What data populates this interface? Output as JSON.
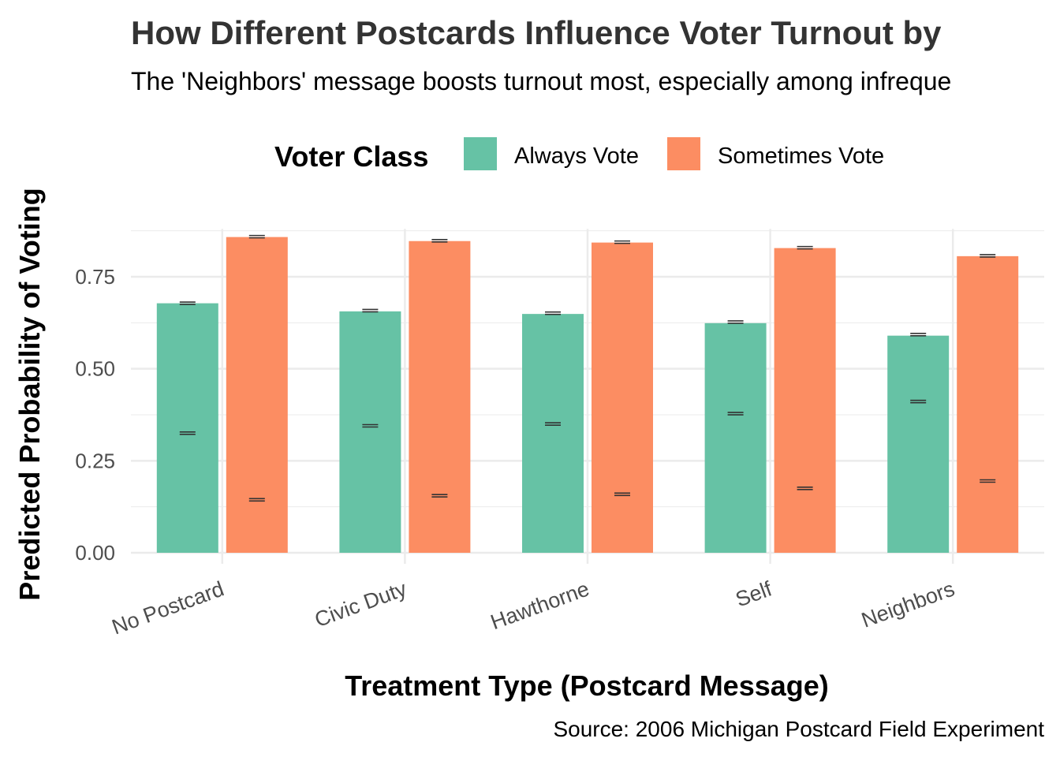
{
  "chart_data": {
    "type": "bar",
    "title": "How Different Postcards Influence Voter Turnout by",
    "subtitle": "The 'Neighbors' message boosts turnout most, especially among infreque",
    "xlabel": "Treatment Type (Postcard Message)",
    "ylabel": "Predicted Probability of Voting",
    "caption": "Source: 2006 Michigan Postcard Field Experiment",
    "legend_title": "Voter Class",
    "legend_position": "top",
    "ylim": [
      0,
      0.88
    ],
    "yticks": [
      0,
      0.25,
      0.5,
      0.75
    ],
    "ytick_labels": [
      "0.00",
      "0.25",
      "0.50",
      "0.75"
    ],
    "grid": true,
    "categories": [
      "No Postcard",
      "Civic Duty",
      "Hawthorne",
      "Self",
      "Neighbors"
    ],
    "series": [
      {
        "name": "Always Vote",
        "color": "#66c2a5",
        "values": [
          0.678,
          0.656,
          0.649,
          0.624,
          0.59
        ],
        "error_top": [
          0.678,
          0.658,
          0.651,
          0.627,
          0.593
        ],
        "error_low": [
          0.325,
          0.345,
          0.35,
          0.378,
          0.411
        ]
      },
      {
        "name": "Sometimes Vote",
        "color": "#fc8d62",
        "values": [
          0.858,
          0.847,
          0.843,
          0.828,
          0.806
        ],
        "error_top": [
          0.859,
          0.848,
          0.844,
          0.829,
          0.807
        ],
        "error_low": [
          0.144,
          0.155,
          0.159,
          0.175,
          0.195
        ]
      }
    ]
  }
}
